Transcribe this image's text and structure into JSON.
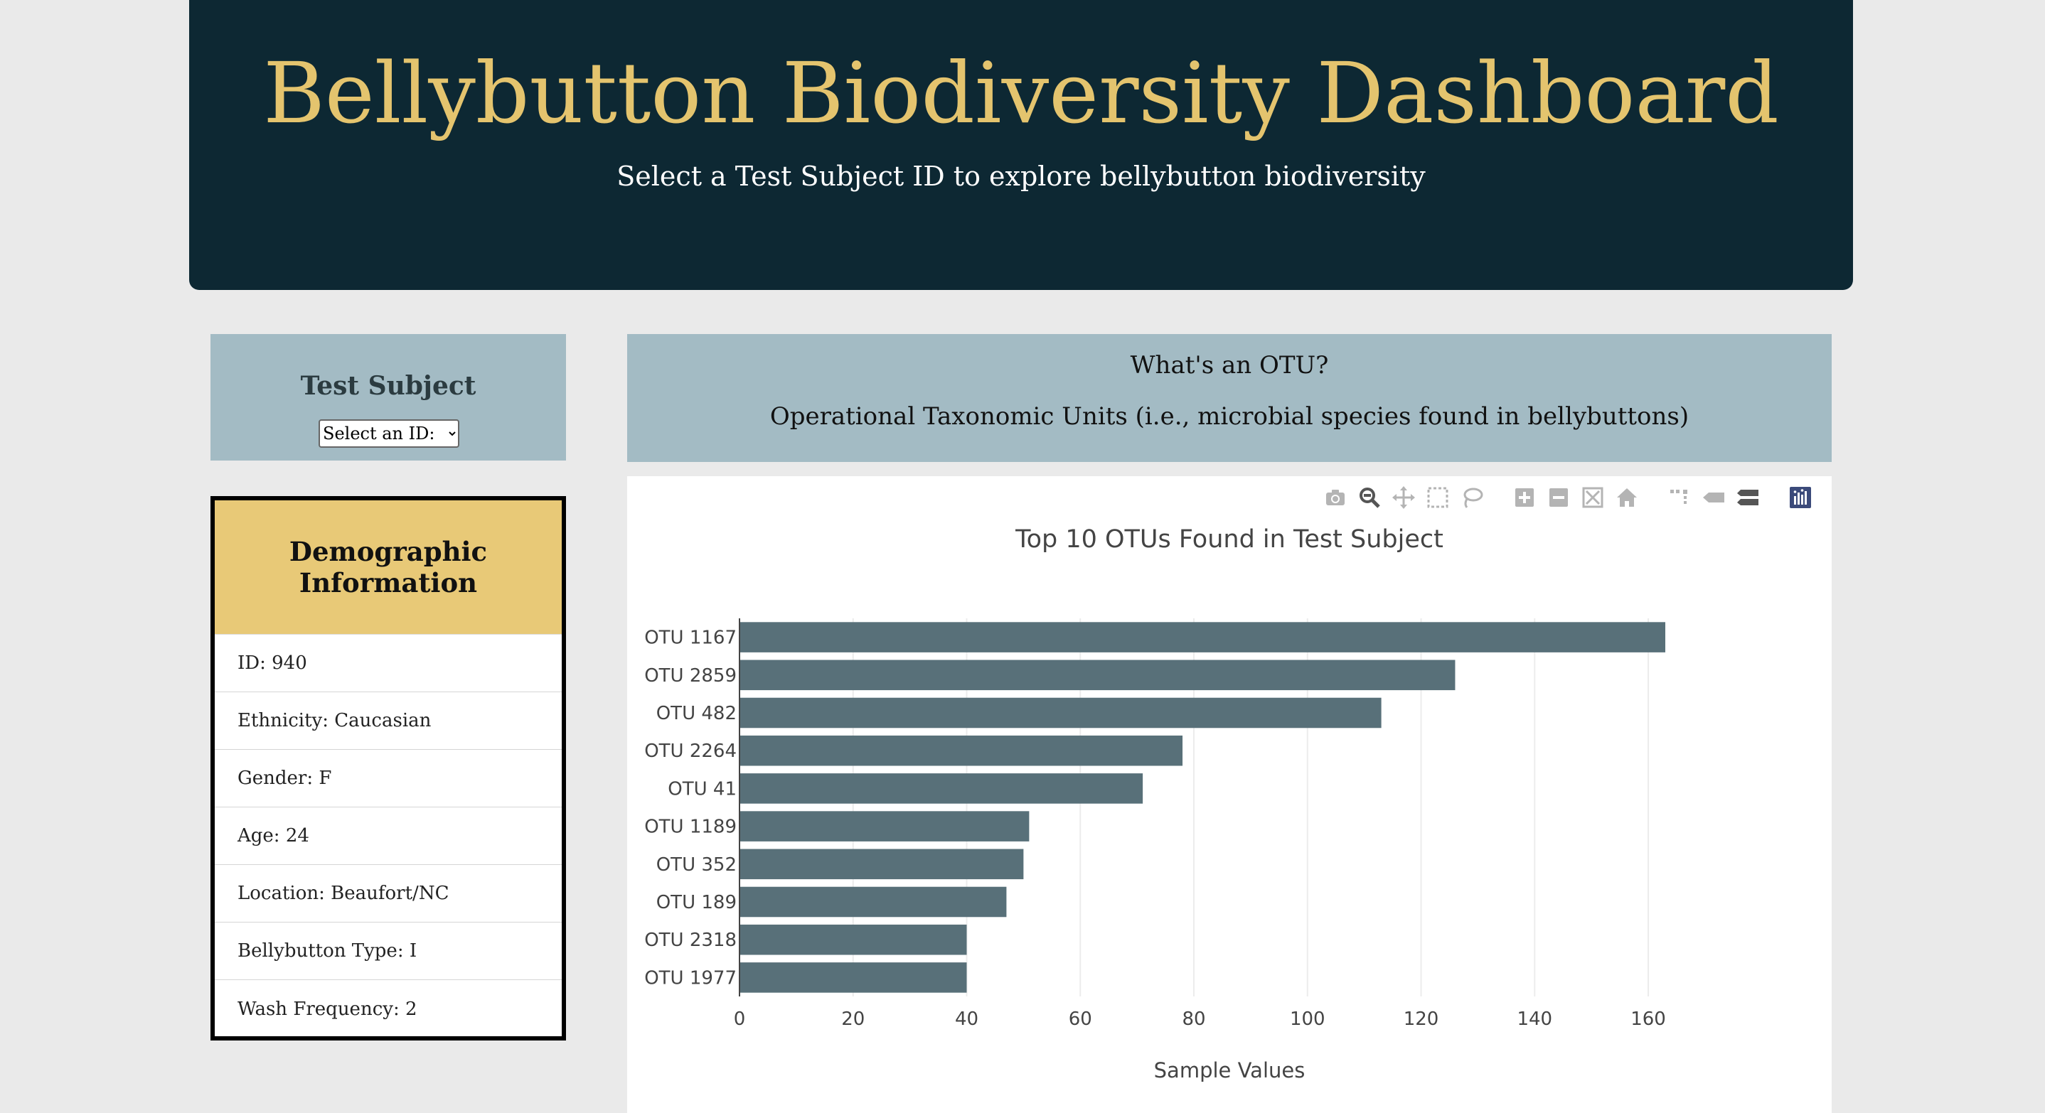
{
  "header": {
    "title": "Bellybutton Biodiversity Dashboard",
    "subtitle": "Select a Test Subject ID to explore bellybutton biodiversity"
  },
  "subject_panel": {
    "title": "Test Subject",
    "select_value": "Select an ID:"
  },
  "demographics": {
    "title_line1": "Demographic",
    "title_line2": "Information",
    "rows": [
      "ID: 940",
      "Ethnicity: Caucasian",
      "Gender: F",
      "Age: 24",
      "Location: Beaufort/NC",
      "Bellybutton Type: I",
      "Wash Frequency: 2"
    ]
  },
  "otu_info": {
    "question": "What's an OTU?",
    "definition": "Operational Taxonomic Units (i.e., microbial species found in bellybuttons)"
  },
  "modebar": {
    "icons": [
      "camera-icon",
      "zoom-icon",
      "pan-icon",
      "box-select-icon",
      "lasso-select-icon",
      "zoom-in-icon",
      "zoom-out-icon",
      "autoscale-icon",
      "reset-axes-icon",
      "spike-lines-icon",
      "hover-closest-icon",
      "hover-compare-icon",
      "plotly-logo-icon"
    ],
    "icon_color": "#b4b4b4",
    "active_color": "#666666"
  },
  "chart_data": {
    "type": "bar",
    "orientation": "horizontal",
    "title": "Top 10 OTUs Found in Test Subject",
    "xlabel": "Sample Values",
    "ylabel": "",
    "categories": [
      "OTU 1167",
      "OTU 2859",
      "OTU 482",
      "OTU 2264",
      "OTU 41",
      "OTU 1189",
      "OTU 352",
      "OTU 189",
      "OTU 2318",
      "OTU 1977"
    ],
    "values": [
      163,
      126,
      113,
      78,
      71,
      51,
      50,
      47,
      40,
      40
    ],
    "xlim": [
      0,
      163
    ],
    "xticks": [
      0,
      20,
      40,
      60,
      80,
      100,
      120,
      140,
      160
    ],
    "grid": true,
    "bar_color": "#587079"
  }
}
